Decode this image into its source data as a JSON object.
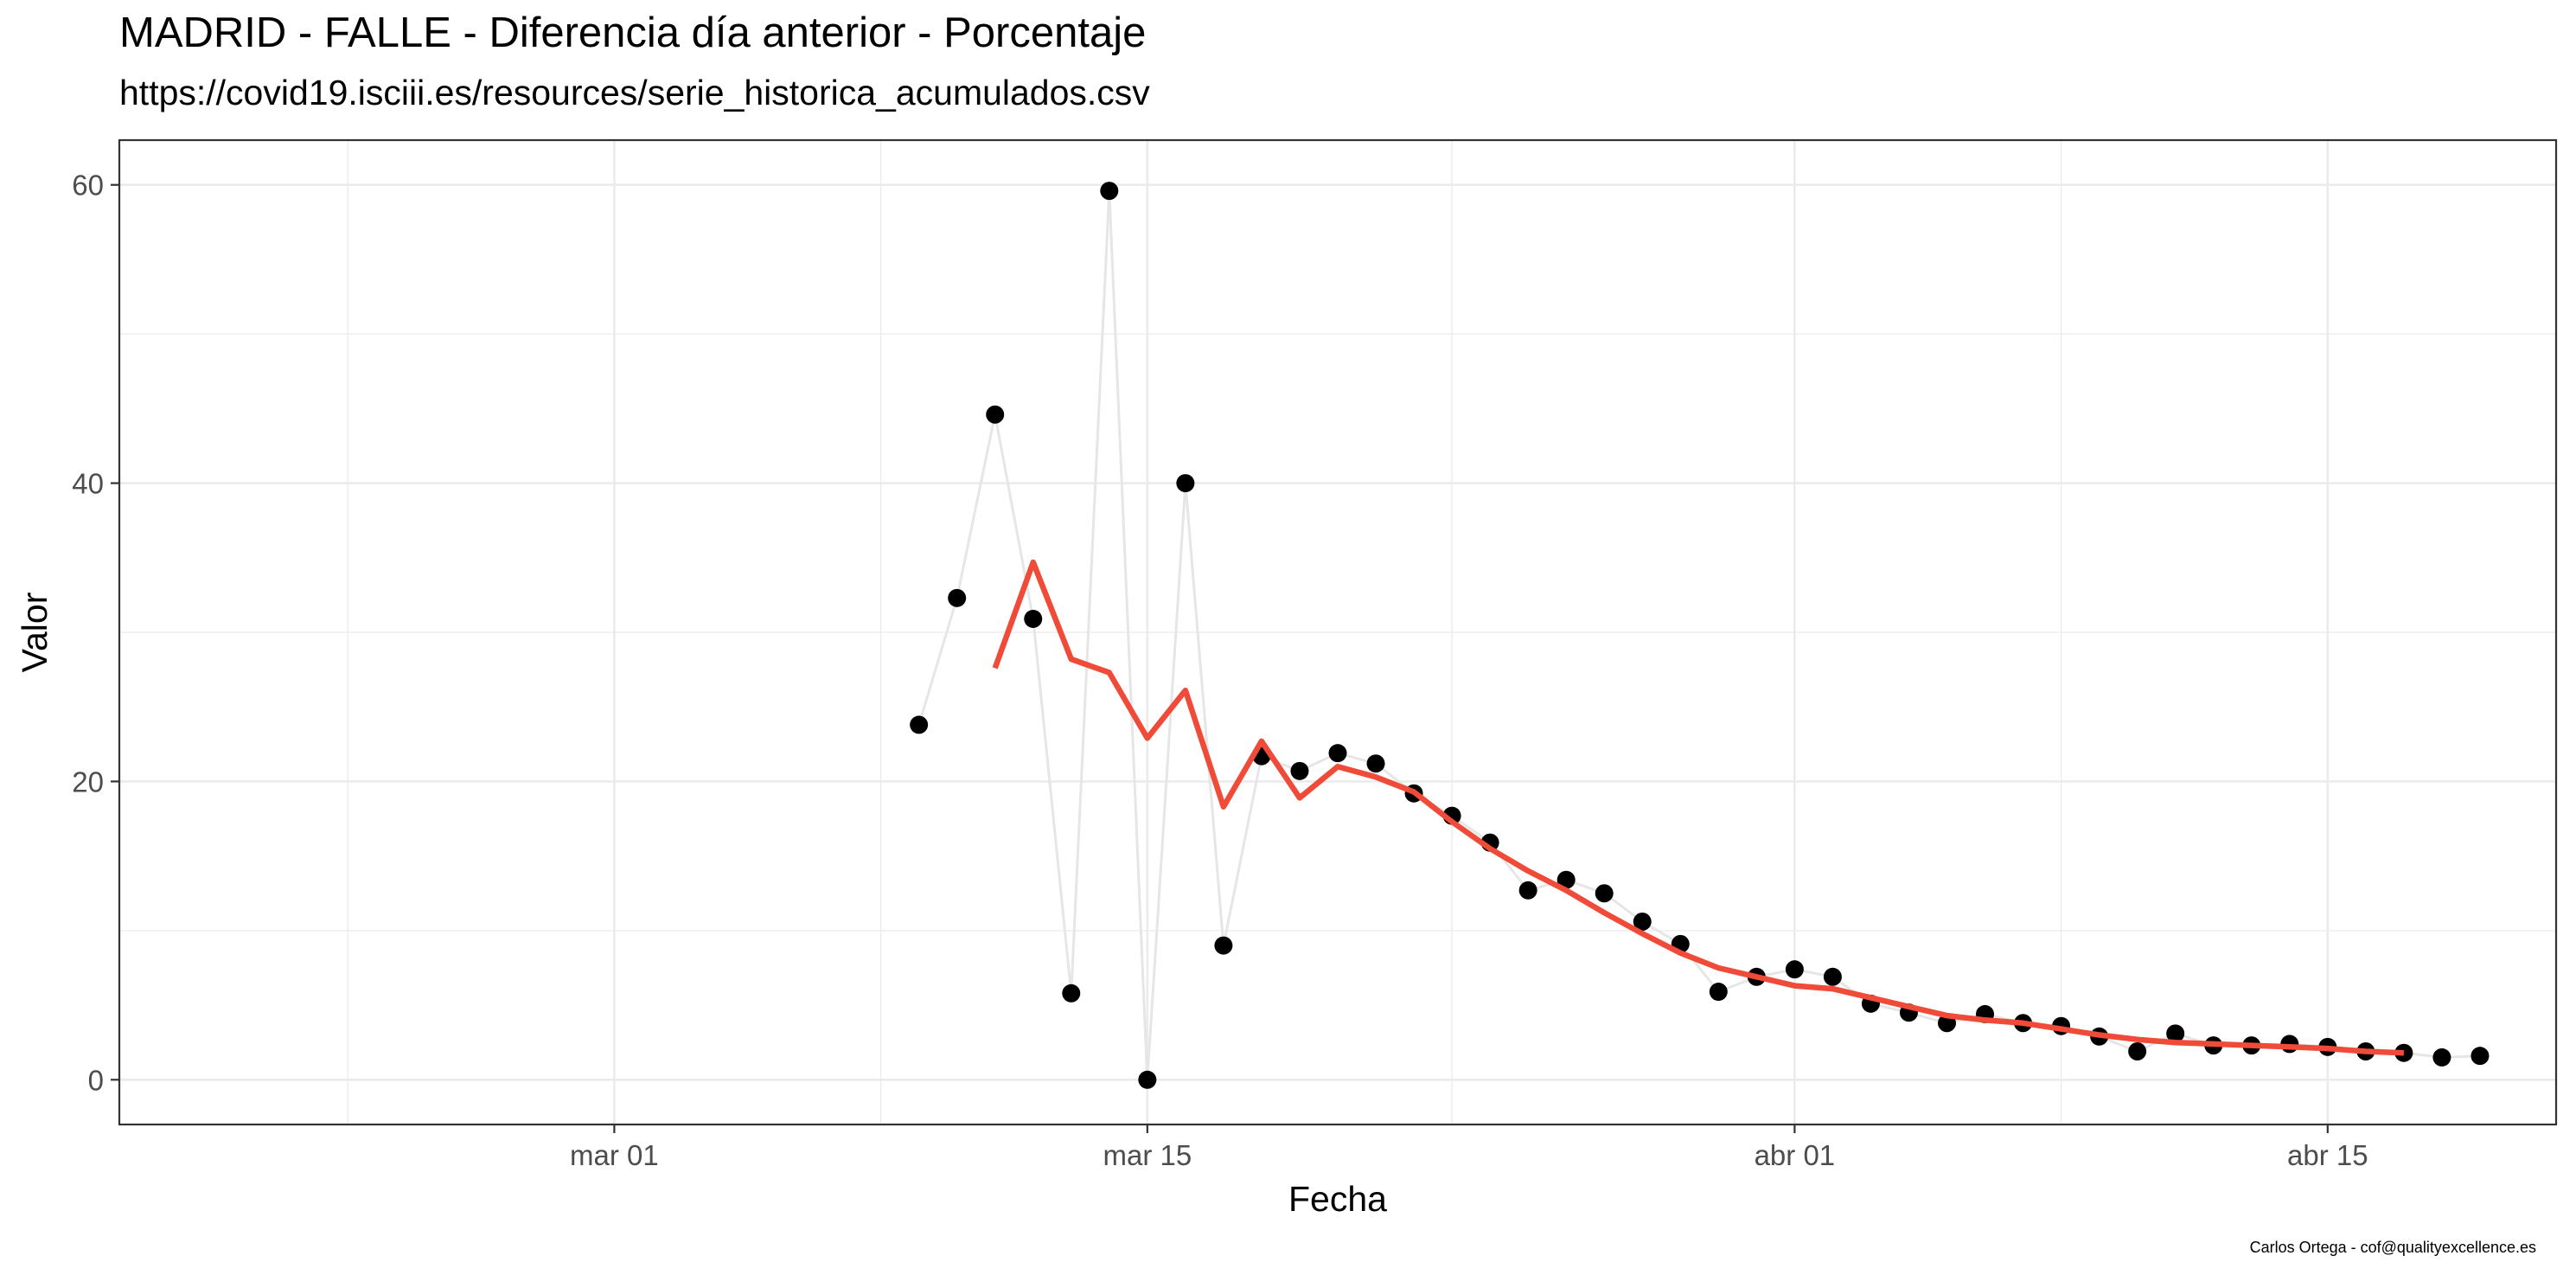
{
  "chart_data": {
    "type": "scatter",
    "title": "MADRID - FALLE - Diferencia día anterior - Porcentaje",
    "subtitle": "https://covid19.isciii.es/resources/serie_historica_acumulados.csv",
    "xlabel": "Fecha",
    "ylabel": "Valor",
    "caption": "Carlos Ortega - cof@qualityexcellence.es",
    "xlim": [
      "2020-02-17",
      "2020-04-21"
    ],
    "ylim": [
      -3,
      63
    ],
    "x_ticks": [
      {
        "date": "2020-03-01",
        "label": "mar 01"
      },
      {
        "date": "2020-03-15",
        "label": "mar 15"
      },
      {
        "date": "2020-04-01",
        "label": "abr 01"
      },
      {
        "date": "2020-04-15",
        "label": "abr 15"
      }
    ],
    "y_ticks": [
      0,
      20,
      40,
      60
    ],
    "grid": true,
    "colors": {
      "points": "#000000",
      "connecting_line": "#e6e6e6",
      "smooth": "#f04a38",
      "grid": "#ebebeb",
      "panel_border": "#333333"
    },
    "series": [
      {
        "type": "scatter",
        "x": [
          "2020-03-09",
          "2020-03-10",
          "2020-03-11",
          "2020-03-12",
          "2020-03-13",
          "2020-03-14",
          "2020-03-15",
          "2020-03-16",
          "2020-03-17",
          "2020-03-18",
          "2020-03-19",
          "2020-03-20",
          "2020-03-21",
          "2020-03-22",
          "2020-03-23",
          "2020-03-24",
          "2020-03-25",
          "2020-03-26",
          "2020-03-27",
          "2020-03-28",
          "2020-03-29",
          "2020-03-30",
          "2020-03-31",
          "2020-04-01",
          "2020-04-02",
          "2020-04-03",
          "2020-04-04",
          "2020-04-05",
          "2020-04-06",
          "2020-04-07",
          "2020-04-08",
          "2020-04-09",
          "2020-04-10",
          "2020-04-11",
          "2020-04-12",
          "2020-04-13",
          "2020-04-14",
          "2020-04-15",
          "2020-04-16",
          "2020-04-17",
          "2020-04-18",
          "2020-04-19"
        ],
        "values": [
          23.8,
          32.3,
          44.6,
          30.9,
          5.8,
          59.6,
          0,
          40.0,
          9.0,
          21.7,
          20.7,
          21.9,
          21.2,
          19.2,
          17.7,
          15.9,
          12.7,
          13.4,
          12.5,
          10.6,
          9.1,
          5.9,
          6.9,
          7.4,
          6.9,
          5.1,
          4.5,
          3.8,
          4.4,
          3.8,
          3.6,
          2.9,
          1.9,
          3.1,
          2.3,
          2.3,
          2.4,
          2.2,
          1.9,
          1.8,
          1.5,
          1.6
        ]
      },
      {
        "type": "line",
        "x": [
          "2020-03-11",
          "2020-03-12",
          "2020-03-13",
          "2020-03-14",
          "2020-03-15",
          "2020-03-16",
          "2020-03-17",
          "2020-03-18",
          "2020-03-19",
          "2020-03-20",
          "2020-03-21",
          "2020-03-22",
          "2020-03-23",
          "2020-03-24",
          "2020-03-25",
          "2020-03-26",
          "2020-03-27",
          "2020-03-28",
          "2020-03-29",
          "2020-03-30",
          "2020-03-31",
          "2020-04-01",
          "2020-04-02",
          "2020-04-03",
          "2020-04-04",
          "2020-04-05",
          "2020-04-06",
          "2020-04-07",
          "2020-04-08",
          "2020-04-09",
          "2020-04-10",
          "2020-04-11",
          "2020-04-12",
          "2020-04-13",
          "2020-04-14",
          "2020-04-15",
          "2020-04-16",
          "2020-04-17"
        ],
        "values": [
          27.6,
          34.7,
          28.2,
          27.3,
          22.9,
          26.1,
          18.3,
          22.7,
          18.9,
          21.0,
          20.3,
          19.3,
          17.3,
          15.5,
          14.0,
          12.7,
          11.2,
          9.8,
          8.5,
          7.5,
          6.9,
          6.3,
          6.1,
          5.5,
          4.9,
          4.3,
          4.0,
          3.8,
          3.4,
          3.0,
          2.7,
          2.5,
          2.4,
          2.3,
          2.2,
          2.1,
          1.9,
          1.8
        ]
      }
    ]
  }
}
